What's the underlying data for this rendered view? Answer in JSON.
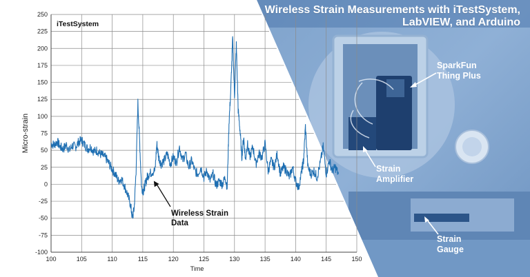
{
  "header": {
    "title_line1": "Wireless Strain Measurements with iTestSystem,",
    "title_line2": "LabVIEW, and Arduino"
  },
  "photo": {
    "labels": {
      "thing_plus": [
        "SparkFun",
        "Thing Plus"
      ],
      "amplifier": [
        "Strain",
        "Amplifier"
      ],
      "gauge": [
        "Strain",
        "Gauge"
      ]
    },
    "tint_color": "#5a86b8"
  },
  "chart_data": {
    "type": "line",
    "title": "iTestSystem",
    "xlabel": "Time",
    "ylabel": "Micro-strain",
    "xlim": [
      100,
      150
    ],
    "ylim": [
      -100,
      250
    ],
    "xticks": [
      100,
      105,
      110,
      115,
      120,
      125,
      130,
      135,
      140,
      145,
      150
    ],
    "yticks": [
      -100,
      -75,
      -50,
      -25,
      0,
      25,
      50,
      75,
      100,
      125,
      150,
      175,
      200,
      225,
      250
    ],
    "grid": true,
    "line_color": "#1f6fb2",
    "annotation": {
      "text": [
        "Wireless Strain",
        "Data"
      ],
      "arrow_to": [
        116.8,
        5
      ]
    },
    "series": [
      {
        "x": [
          100,
          100.5,
          101,
          101.5,
          102,
          102.5,
          103,
          103.5,
          104,
          104.5,
          105,
          105.5,
          106,
          106.5,
          107,
          107.5,
          108,
          108.5,
          109,
          109.5,
          110,
          110.5,
          111,
          111.5,
          112,
          112.5,
          113,
          113.3,
          113.6,
          113.9,
          114.2,
          114.5,
          114.8,
          115.1,
          115.4,
          115.7,
          116,
          116.5,
          117,
          117.3,
          117.6,
          118,
          118.5,
          119,
          119.5,
          120,
          120.5,
          121,
          121.5,
          122,
          122.5,
          123,
          123.5,
          124,
          124.5,
          125,
          125.5,
          126,
          126.5,
          127,
          127.5,
          128,
          128.5,
          128.8,
          129.1,
          129.4,
          129.7,
          130,
          130.3,
          130.6,
          130.9,
          131.2,
          131.5,
          131.8,
          132.1,
          132.5,
          133,
          133.5,
          134,
          134.5,
          135,
          135.5,
          136,
          136.5,
          137,
          137.5,
          138,
          138.5,
          139,
          139.5,
          140,
          140.5,
          141,
          141.3,
          141.6,
          142,
          142.5,
          143,
          143.5,
          144,
          144.5,
          145,
          145.5,
          146,
          146.5,
          147
        ],
        "y": [
          60,
          58,
          63,
          55,
          52,
          58,
          50,
          57,
          55,
          62,
          65,
          58,
          52,
          55,
          48,
          50,
          45,
          42,
          38,
          30,
          22,
          15,
          5,
          8,
          -2,
          -15,
          -30,
          -50,
          -35,
          20,
          120,
          60,
          -5,
          -10,
          0,
          10,
          15,
          18,
          20,
          60,
          40,
          30,
          35,
          45,
          30,
          40,
          32,
          55,
          35,
          45,
          25,
          35,
          20,
          15,
          25,
          10,
          20,
          5,
          15,
          -2,
          5,
          0,
          10,
          -5,
          90,
          140,
          215,
          130,
          205,
          110,
          80,
          40,
          70,
          35,
          60,
          40,
          55,
          30,
          45,
          40,
          60,
          20,
          35,
          25,
          45,
          15,
          25,
          20,
          10,
          25,
          5,
          -5,
          20,
          35,
          85,
          25,
          15,
          20,
          10,
          30,
          55,
          15,
          35,
          20,
          25,
          15
        ]
      }
    ]
  }
}
